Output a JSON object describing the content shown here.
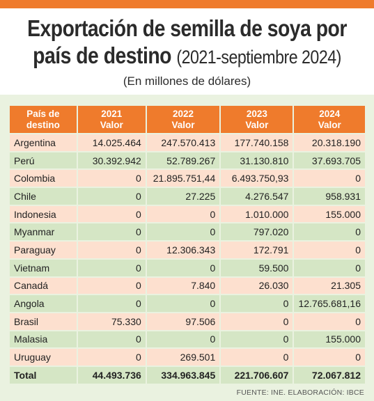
{
  "title": {
    "line1": "Exportación de semilla de soya por",
    "line2_bold": "país de destino",
    "line2_light": "(2021-septiembre 2024)",
    "subtitle": "(En millones de dólares)"
  },
  "source": "FUENTE: INE. ELABORACIÓN: IBCE",
  "colors": {
    "accent": "#ef7b2c",
    "row_odd": "#fde0cf",
    "row_even": "#d5e6c5",
    "panel": "#eaf2e0"
  },
  "chart_data": {
    "type": "table",
    "columns": [
      {
        "line1": "País de",
        "line2": "destino"
      },
      {
        "line1": "2021",
        "line2": "Valor"
      },
      {
        "line1": "2022",
        "line2": "Valor"
      },
      {
        "line1": "2023",
        "line2": "Valor"
      },
      {
        "line1": "2024",
        "line2": "Valor"
      }
    ],
    "rows": [
      {
        "country": "Argentina",
        "values": [
          "14.025.464",
          "247.570.413",
          "177.740.158",
          "20.318.190"
        ]
      },
      {
        "country": "Perú",
        "values": [
          "30.392.942",
          "52.789.267",
          "31.130.810",
          "37.693.705"
        ]
      },
      {
        "country": "Colombia",
        "values": [
          "0",
          "21.895.751,44",
          "6.493.750,93",
          "0"
        ]
      },
      {
        "country": "Chile",
        "values": [
          "0",
          "27.225",
          "4.276.547",
          "958.931"
        ]
      },
      {
        "country": "Indonesia",
        "values": [
          "0",
          "0",
          "1.010.000",
          "155.000"
        ]
      },
      {
        "country": "Myanmar",
        "values": [
          "0",
          "0",
          "797.020",
          "0"
        ]
      },
      {
        "country": "Paraguay",
        "values": [
          "0",
          "12.306.343",
          "172.791",
          "0"
        ]
      },
      {
        "country": "Vietnam",
        "values": [
          "0",
          "0",
          "59.500",
          "0"
        ]
      },
      {
        "country": "Canadá",
        "values": [
          "0",
          "7.840",
          "26.030",
          "21.305"
        ]
      },
      {
        "country": "Angola",
        "values": [
          "0",
          "0",
          "0",
          "12.765.681,16"
        ]
      },
      {
        "country": "Brasil",
        "values": [
          "75.330",
          "97.506",
          "0",
          "0"
        ]
      },
      {
        "country": "Malasia",
        "values": [
          "0",
          "0",
          "0",
          "155.000"
        ]
      },
      {
        "country": "Uruguay",
        "values": [
          "0",
          "269.501",
          "0",
          "0"
        ]
      }
    ],
    "total": {
      "label": "Total",
      "values": [
        "44.493.736",
        "334.963.845",
        "221.706.607",
        "72.067.812"
      ]
    }
  }
}
